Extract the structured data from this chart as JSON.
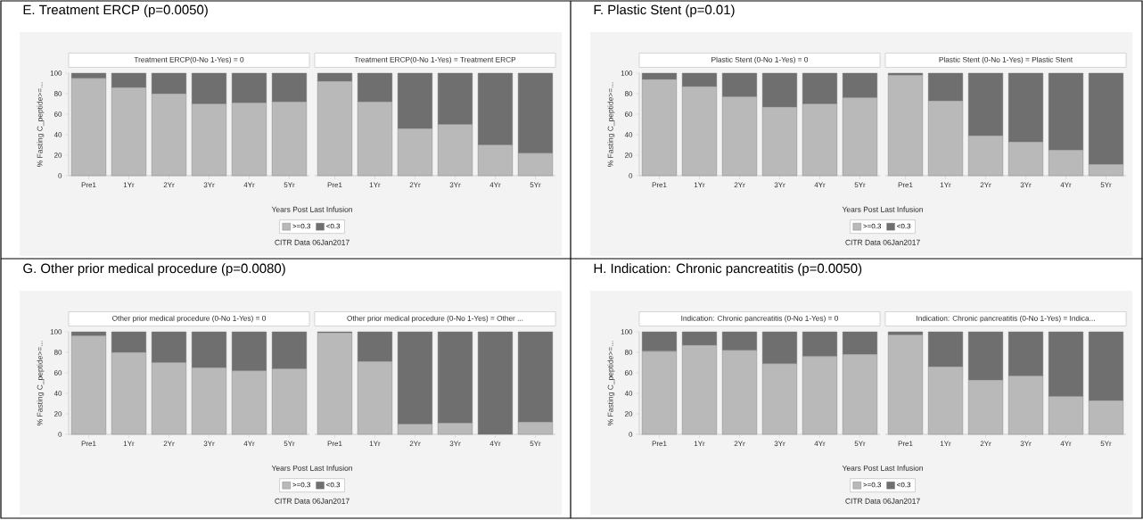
{
  "chart_data": [
    {
      "type": "bar",
      "title": "E. Treatment ERCP (p=0.0050)",
      "subtitle": "Treatment ERCP(0-No 1-Yes) = 0",
      "ylabel": "% Fasting C_peptide>=...",
      "categories": [
        "Pre1",
        "1Yr",
        "2Yr",
        "3Yr",
        "4Yr",
        "5Yr"
      ],
      "stacked": true,
      "ylim": [
        0,
        100
      ],
      "yticks": [
        0,
        20,
        40,
        60,
        80,
        100
      ],
      "series": [
        {
          "color": "#b9b9b9",
          "values": [
            95,
            86,
            80,
            70,
            71,
            72
          ]
        },
        {
          "color": "#6f6f6f",
          "values": [
            5,
            14,
            20,
            30,
            29,
            28
          ]
        }
      ]
    },
    {
      "type": "bar",
      "subtitle": "Treatment ERCP(0-No 1-Yes) = Treatment ERCP",
      "xlabel": "Years Post Last Infusion",
      "legend": "bottom",
      "annotations": [
        "CITR  Data 06Jan2017"
      ],
      "tick_labels": "x",
      "categories": [
        "Pre1",
        "1Yr",
        "2Yr",
        "3Yr",
        "4Yr",
        "5Yr"
      ],
      "stacked": true,
      "ylim": [
        0,
        100
      ],
      "yticks": [
        0,
        20,
        40,
        60,
        80,
        100
      ],
      "series": [
        {
          "name": ">=0.3",
          "color": "#b9b9b9",
          "values": [
            92,
            72,
            46,
            50,
            30,
            22
          ]
        },
        {
          "name": "<0.3",
          "color": "#6f6f6f",
          "values": [
            8,
            28,
            54,
            50,
            70,
            78
          ]
        }
      ]
    },
    {
      "type": "bar",
      "title": "F. Plastic Stent (p=0.01)",
      "subtitle": "Plastic Stent (0-No 1-Yes) = 0",
      "ylabel": "% Fasting C_peptide>=...",
      "categories": [
        "Pre1",
        "1Yr",
        "2Yr",
        "3Yr",
        "4Yr",
        "5Yr"
      ],
      "stacked": true,
      "ylim": [
        0,
        100
      ],
      "yticks": [
        0,
        20,
        40,
        60,
        80,
        100
      ],
      "series": [
        {
          "color": "#b9b9b9",
          "values": [
            94,
            87,
            77,
            67,
            70,
            76
          ]
        },
        {
          "color": "#6f6f6f",
          "values": [
            6,
            13,
            23,
            33,
            30,
            24
          ]
        }
      ]
    },
    {
      "type": "bar",
      "subtitle": "Plastic Stent (0-No 1-Yes) = Plastic Stent",
      "xlabel": "Years Post Last Infusion",
      "legend": "bottom",
      "annotations": [
        "CITR  Data 06Jan2017"
      ],
      "tick_labels": "x",
      "categories": [
        "Pre1",
        "1Yr",
        "2Yr",
        "3Yr",
        "4Yr",
        "5Yr"
      ],
      "stacked": true,
      "ylim": [
        0,
        100
      ],
      "yticks": [
        0,
        20,
        40,
        60,
        80,
        100
      ],
      "series": [
        {
          "name": ">=0.3",
          "color": "#b9b9b9",
          "values": [
            98,
            73,
            39,
            33,
            25,
            11
          ]
        },
        {
          "name": "<0.3",
          "color": "#6f6f6f",
          "values": [
            2,
            27,
            61,
            67,
            75,
            89
          ]
        }
      ]
    },
    {
      "type": "bar",
      "title": "G. Other prior medical procedure (p=0.0080)",
      "subtitle": "Other prior medical procedure (0-No 1-Yes) = 0",
      "ylabel": "% Fasting C_peptide>=...",
      "categories": [
        "Pre1",
        "1Yr",
        "2Yr",
        "3Yr",
        "4Yr",
        "5Yr"
      ],
      "stacked": true,
      "ylim": [
        0,
        100
      ],
      "yticks": [
        0,
        20,
        40,
        60,
        80,
        100
      ],
      "series": [
        {
          "color": "#b9b9b9",
          "values": [
            96,
            80,
            70,
            65,
            62,
            64
          ]
        },
        {
          "color": "#6f6f6f",
          "values": [
            4,
            20,
            30,
            35,
            38,
            36
          ]
        }
      ]
    },
    {
      "type": "bar",
      "subtitle": "Other prior medical procedure (0-No 1-Yes) = Other ...",
      "xlabel": "Years Post Last Infusion",
      "legend": "bottom",
      "annotations": [
        "CITR  Data 06Jan2017"
      ],
      "tick_labels": "x",
      "categories": [
        "Pre1",
        "1Yr",
        "2Yr",
        "3Yr",
        "4Yr",
        "5Yr"
      ],
      "stacked": true,
      "ylim": [
        0,
        100
      ],
      "yticks": [
        0,
        20,
        40,
        60,
        80,
        100
      ],
      "series": [
        {
          "name": ">=0.3",
          "color": "#b9b9b9",
          "values": [
            99,
            71,
            10,
            11,
            0,
            12
          ]
        },
        {
          "name": "<0.3",
          "color": "#6f6f6f",
          "values": [
            1,
            29,
            90,
            89,
            100,
            88
          ]
        }
      ]
    },
    {
      "type": "bar",
      "title": "H. Indication: Chronic pancreatitis (p=0.0050)",
      "subtitle": "Indication: Chronic pancreatitis (0-No 1-Yes) = 0",
      "ylabel": "% Fasting C_peptide>=...",
      "categories": [
        "Pre1",
        "1Yr",
        "2Yr",
        "3Yr",
        "4Yr",
        "5Yr"
      ],
      "stacked": true,
      "ylim": [
        0,
        100
      ],
      "yticks": [
        0,
        20,
        40,
        60,
        80,
        100
      ],
      "series": [
        {
          "color": "#b9b9b9",
          "values": [
            81,
            87,
            82,
            69,
            76,
            78
          ]
        },
        {
          "color": "#6f6f6f",
          "values": [
            19,
            13,
            18,
            31,
            24,
            22
          ]
        }
      ]
    },
    {
      "type": "bar",
      "subtitle": "Indication: Chronic pancreatitis (0-No 1-Yes) = Indica...",
      "xlabel": "Years Post Last Infusion",
      "legend": "bottom",
      "annotations": [
        "CITR  Data 06Jan2017"
      ],
      "tick_labels": "x",
      "categories": [
        "Pre1",
        "1Yr",
        "2Yr",
        "3Yr",
        "4Yr",
        "5Yr"
      ],
      "stacked": true,
      "ylim": [
        0,
        100
      ],
      "yticks": [
        0,
        20,
        40,
        60,
        80,
        100
      ],
      "series": [
        {
          "name": ">=0.3",
          "color": "#b9b9b9",
          "values": [
            97,
            66,
            53,
            57,
            37,
            33
          ]
        },
        {
          "name": "<0.3",
          "color": "#6f6f6f",
          "values": [
            3,
            34,
            47,
            43,
            63,
            67
          ]
        }
      ]
    }
  ]
}
